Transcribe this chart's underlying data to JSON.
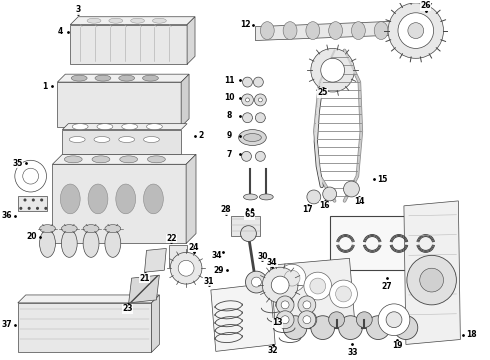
{
  "bg_color": "#ffffff",
  "line_color": "#444444",
  "fig_width": 4.9,
  "fig_height": 3.6,
  "dpi": 100
}
